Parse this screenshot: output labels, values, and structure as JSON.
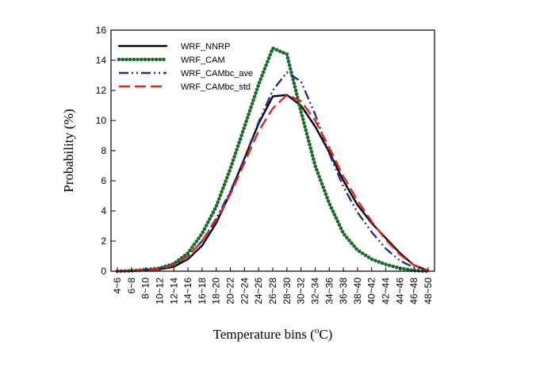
{
  "chart_data": {
    "type": "line",
    "xlabel": "Temperature bins (",
    "xlabel_unit": "o",
    "xlabel_suffix": "C)",
    "ylabel": "Probability (%)",
    "ylim": [
      0,
      16
    ],
    "yticks": [
      0,
      2,
      4,
      6,
      8,
      10,
      12,
      14,
      16
    ],
    "legend_position": "top-left",
    "categories": [
      "4~6",
      "6~8",
      "8~10",
      "10~12",
      "12~14",
      "14~16",
      "16~18",
      "18~20",
      "20~22",
      "22~24",
      "24~26",
      "26~28",
      "28~30",
      "30~32",
      "32~34",
      "34~36",
      "36~38",
      "38~40",
      "40~42",
      "42~44",
      "44~46",
      "46~48",
      "48~50"
    ],
    "series": [
      {
        "name": "WRF_NNRP",
        "color": "#000000",
        "style": "solid",
        "values": [
          0,
          0.02,
          0.05,
          0.12,
          0.3,
          0.8,
          1.7,
          3.2,
          5.2,
          7.5,
          9.8,
          11.6,
          11.7,
          11.0,
          9.6,
          7.9,
          6.0,
          4.4,
          3.2,
          2.2,
          1.2,
          0.4,
          0.05
        ]
      },
      {
        "name": "WRF_CAM",
        "color": "#1a6b2a",
        "style": "dotted",
        "values": [
          0,
          0.03,
          0.1,
          0.2,
          0.5,
          1.2,
          2.5,
          4.3,
          6.8,
          9.6,
          12.4,
          14.8,
          14.4,
          10.6,
          7.0,
          4.5,
          2.5,
          1.4,
          0.8,
          0.45,
          0.2,
          0.05,
          0
        ]
      },
      {
        "name": "WRF_CAMbc_ave",
        "color": "#2a2d8f",
        "style": "dashdotdot",
        "values": [
          0,
          0.03,
          0.08,
          0.15,
          0.4,
          1.0,
          2.0,
          3.5,
          5.3,
          7.5,
          9.9,
          12.0,
          13.2,
          12.6,
          10.4,
          7.8,
          5.6,
          3.9,
          2.6,
          1.5,
          0.7,
          0.25,
          0.03
        ]
      },
      {
        "name": "WRF_CAMbc_std",
        "color": "#e0231e",
        "style": "dashed",
        "values": [
          0,
          0.03,
          0.08,
          0.15,
          0.4,
          1.0,
          2.0,
          3.4,
          5.1,
          7.2,
          9.3,
          10.8,
          11.7,
          11.3,
          10.0,
          8.2,
          6.3,
          4.7,
          3.3,
          2.1,
          1.1,
          0.4,
          0.05
        ]
      }
    ]
  }
}
